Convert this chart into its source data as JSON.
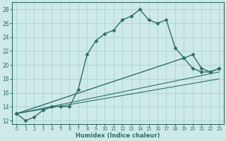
{
  "xlabel": "Humidex (Indice chaleur)",
  "background_color": "#ceeae8",
  "grid_color": "#a8d4d0",
  "line_color": "#2e6e68",
  "xlim": [
    -0.5,
    23.5
  ],
  "ylim": [
    11.5,
    29
  ],
  "yticks": [
    12,
    14,
    16,
    18,
    20,
    22,
    24,
    26,
    28
  ],
  "xticks": [
    0,
    1,
    2,
    3,
    4,
    5,
    6,
    7,
    8,
    9,
    10,
    11,
    12,
    13,
    14,
    15,
    16,
    17,
    18,
    19,
    20,
    21,
    22,
    23
  ],
  "series": [
    {
      "x": [
        0,
        1,
        2,
        3,
        4,
        5,
        6,
        7,
        8,
        9,
        10,
        11,
        12,
        13,
        14,
        15,
        16,
        17,
        18,
        19,
        20,
        21,
        22,
        23
      ],
      "y": [
        13,
        12,
        12.5,
        13.5,
        14,
        14,
        14,
        16.5,
        21.5,
        23.5,
        24.5,
        25,
        26.5,
        27,
        28,
        26.5,
        26,
        26.5,
        22.5,
        21,
        19.5,
        19,
        19,
        19.5
      ],
      "has_marker": true,
      "markersize": 2.5,
      "linewidth": 1.0
    },
    {
      "x": [
        0,
        19,
        20,
        21,
        22,
        23
      ],
      "y": [
        13,
        21,
        21.5,
        19.5,
        19,
        19.5
      ],
      "has_marker": true,
      "markersize": 2.5,
      "linewidth": 1.0
    },
    {
      "x": [
        0,
        23
      ],
      "y": [
        13,
        19.0
      ],
      "has_marker": false,
      "linewidth": 0.8
    },
    {
      "x": [
        0,
        23
      ],
      "y": [
        13,
        18.0
      ],
      "has_marker": false,
      "linewidth": 0.8
    }
  ]
}
